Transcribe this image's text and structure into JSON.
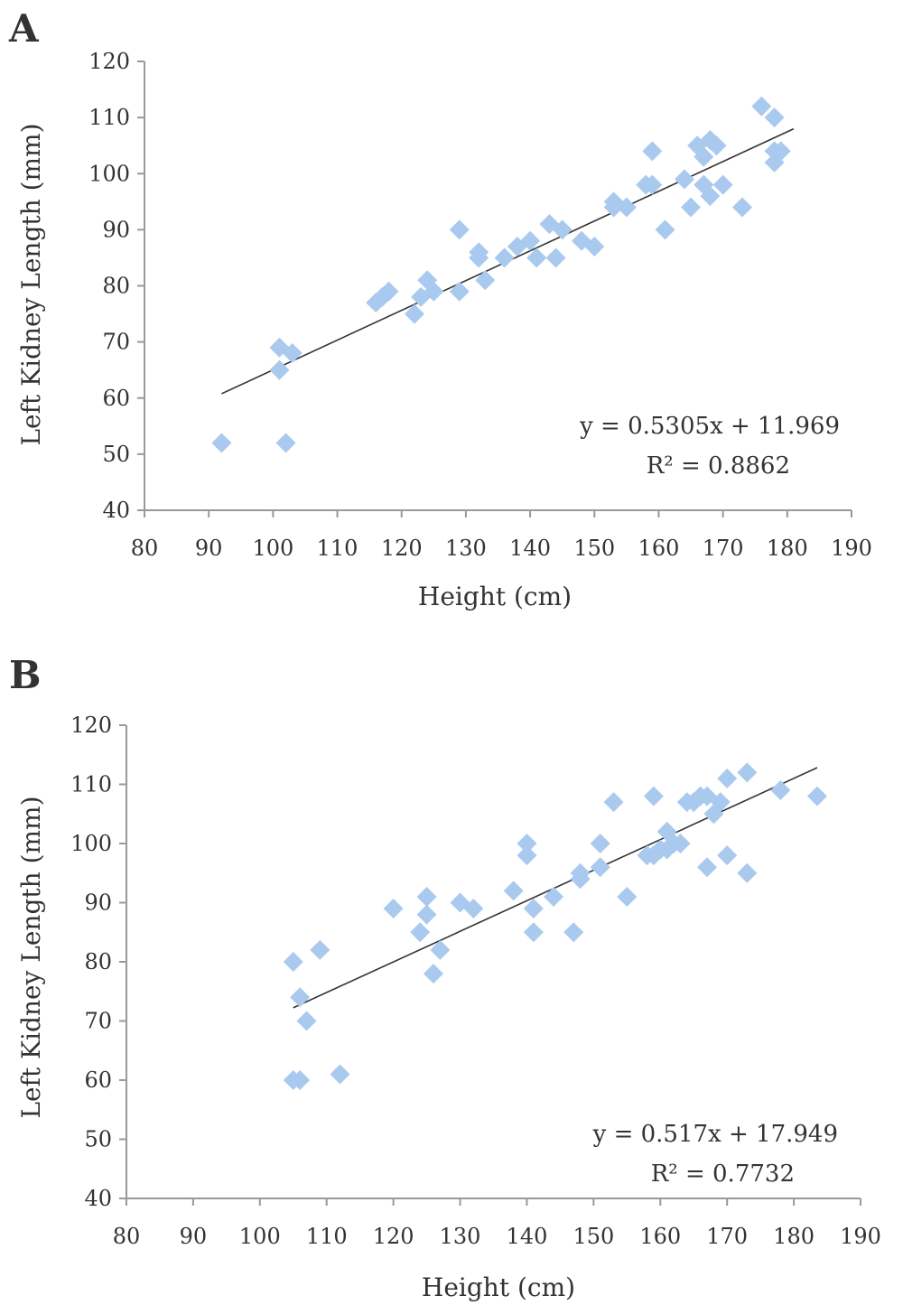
{
  "colors": {
    "marker": "#a9c9ee",
    "axis": "#999999",
    "trend": "#333333"
  },
  "chart_data": [
    {
      "panel": "A",
      "type": "scatter",
      "xlabel": "Height (cm)",
      "ylabel": "Left Kidney Length (mm)",
      "xlim": [
        80,
        190
      ],
      "ylim": [
        40,
        120
      ],
      "xticks": [
        80,
        90,
        100,
        110,
        120,
        130,
        140,
        150,
        160,
        170,
        180,
        190
      ],
      "yticks": [
        40,
        50,
        60,
        70,
        80,
        90,
        100,
        110,
        120
      ],
      "grid": false,
      "equation": "y = 0.5305x + 11.969",
      "r2": "R² = 0.8862",
      "trendline": {
        "slope": 0.5305,
        "intercept": 11.969,
        "x_range": [
          92,
          181
        ]
      },
      "points": [
        [
          92,
          52
        ],
        [
          101,
          69
        ],
        [
          101,
          65
        ],
        [
          102,
          52
        ],
        [
          103,
          68
        ],
        [
          116,
          77
        ],
        [
          117,
          78
        ],
        [
          118,
          79
        ],
        [
          122,
          75
        ],
        [
          123,
          78
        ],
        [
          124,
          81
        ],
        [
          125,
          79
        ],
        [
          129,
          90
        ],
        [
          129,
          79
        ],
        [
          132,
          86
        ],
        [
          132,
          85
        ],
        [
          133,
          81
        ],
        [
          136,
          85
        ],
        [
          138,
          87
        ],
        [
          140,
          88
        ],
        [
          141,
          85
        ],
        [
          143,
          91
        ],
        [
          144,
          85
        ],
        [
          145,
          90
        ],
        [
          148,
          88
        ],
        [
          150,
          87
        ],
        [
          153,
          95
        ],
        [
          153,
          94
        ],
        [
          155,
          94
        ],
        [
          158,
          98
        ],
        [
          159,
          98
        ],
        [
          159,
          104
        ],
        [
          161,
          90
        ],
        [
          164,
          99
        ],
        [
          165,
          94
        ],
        [
          166,
          105
        ],
        [
          167,
          103
        ],
        [
          167,
          98
        ],
        [
          168,
          96
        ],
        [
          168,
          106
        ],
        [
          169,
          105
        ],
        [
          170,
          98
        ],
        [
          173,
          94
        ],
        [
          176,
          112
        ],
        [
          178,
          110
        ],
        [
          178,
          102
        ],
        [
          178,
          104
        ],
        [
          179,
          104
        ]
      ]
    },
    {
      "panel": "B",
      "type": "scatter",
      "xlabel": "Height (cm)",
      "ylabel": "Left Kidney Length (mm)",
      "xlim": [
        80,
        190
      ],
      "ylim": [
        40,
        120
      ],
      "xticks": [
        80,
        90,
        100,
        110,
        120,
        130,
        140,
        150,
        160,
        170,
        180,
        190
      ],
      "yticks": [
        40,
        50,
        60,
        70,
        80,
        90,
        100,
        110,
        120
      ],
      "grid": false,
      "equation": "y = 0.517x + 17.949",
      "r2": "R² = 0.7732",
      "trendline": {
        "slope": 0.517,
        "intercept": 17.949,
        "x_range": [
          105,
          183.5
        ]
      },
      "points": [
        [
          105,
          80
        ],
        [
          105,
          60
        ],
        [
          106,
          60
        ],
        [
          106,
          74
        ],
        [
          107,
          70
        ],
        [
          109,
          82
        ],
        [
          112,
          61
        ],
        [
          120,
          89
        ],
        [
          124,
          85
        ],
        [
          125,
          91
        ],
        [
          125,
          88
        ],
        [
          126,
          78
        ],
        [
          127,
          82
        ],
        [
          130,
          90
        ],
        [
          132,
          89
        ],
        [
          138,
          92
        ],
        [
          140,
          100
        ],
        [
          140,
          98
        ],
        [
          141,
          89
        ],
        [
          141,
          85
        ],
        [
          144,
          91
        ],
        [
          147,
          85
        ],
        [
          148,
          95
        ],
        [
          148,
          94
        ],
        [
          151,
          100
        ],
        [
          151,
          96
        ],
        [
          153,
          107
        ],
        [
          155,
          91
        ],
        [
          158,
          98
        ],
        [
          159,
          108
        ],
        [
          159,
          98
        ],
        [
          160,
          99
        ],
        [
          161,
          102
        ],
        [
          161,
          99
        ],
        [
          162,
          100
        ],
        [
          163,
          100
        ],
        [
          164,
          107
        ],
        [
          165,
          107
        ],
        [
          166,
          108
        ],
        [
          167,
          108
        ],
        [
          167,
          96
        ],
        [
          168,
          105
        ],
        [
          169,
          107
        ],
        [
          170,
          111
        ],
        [
          170,
          98
        ],
        [
          173,
          112
        ],
        [
          173,
          95
        ],
        [
          178,
          109
        ],
        [
          183.5,
          108
        ]
      ]
    }
  ]
}
